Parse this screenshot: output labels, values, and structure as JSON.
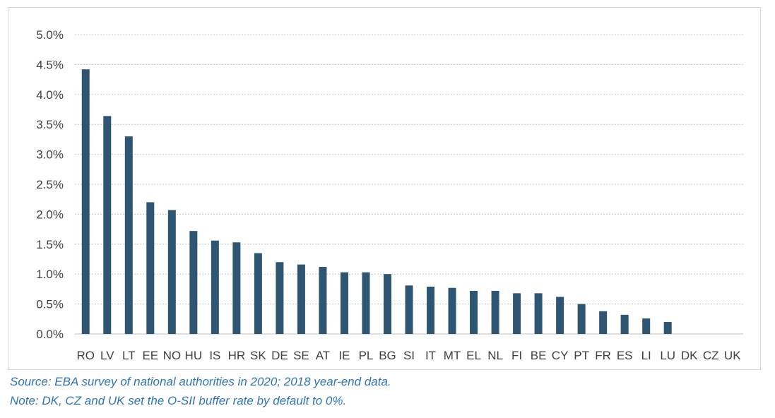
{
  "chart_data": {
    "type": "bar",
    "categories": [
      "RO",
      "LV",
      "LT",
      "EE",
      "NO",
      "HU",
      "IS",
      "HR",
      "SK",
      "DE",
      "SE",
      "AT",
      "IE",
      "PL",
      "BG",
      "SI",
      "IT",
      "MT",
      "EL",
      "NL",
      "FI",
      "BE",
      "CY",
      "PT",
      "FR",
      "ES",
      "LI",
      "LU",
      "DK",
      "CZ",
      "UK"
    ],
    "values": [
      4.42,
      3.64,
      3.3,
      2.2,
      2.07,
      1.72,
      1.56,
      1.53,
      1.35,
      1.2,
      1.16,
      1.12,
      1.03,
      1.03,
      1.0,
      0.81,
      0.79,
      0.77,
      0.72,
      0.72,
      0.68,
      0.68,
      0.62,
      0.5,
      0.38,
      0.32,
      0.26,
      0.2,
      0,
      0,
      0
    ],
    "ylim": [
      0,
      5.0
    ],
    "yticks": [
      "0.0%",
      "0.5%",
      "1.0%",
      "1.5%",
      "2.0%",
      "2.5%",
      "3.0%",
      "3.5%",
      "4.0%",
      "4.5%",
      "5.0%"
    ],
    "ytick_values": [
      0,
      0.5,
      1.0,
      1.5,
      2.0,
      2.5,
      3.0,
      3.5,
      4.0,
      4.5,
      5.0
    ],
    "grid": true,
    "bar_color": "#2e5572"
  },
  "notes": {
    "source": "Source: EBA survey of national authorities in 2020; 2018 year-end data.",
    "note": "Note: DK, CZ and UK set the O-SII buffer rate by default to 0%."
  },
  "colors": {
    "note_text": "#2e75b6",
    "gridline": "#c8c8c8"
  }
}
